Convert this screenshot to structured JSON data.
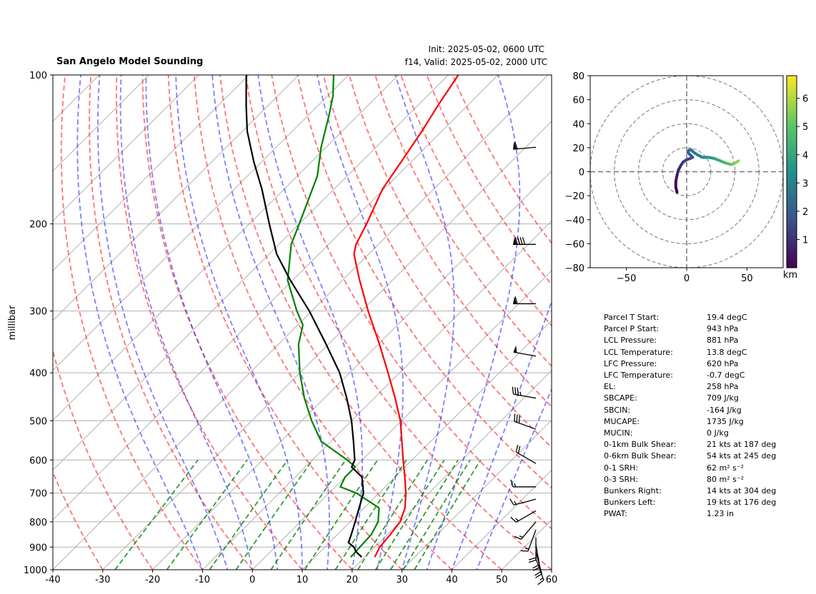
{
  "title_left": "San Angelo Model Sounding",
  "title_init": "Init: 2025-05-02, 0600 UTC",
  "title_valid": "f14, Valid: 2025-05-02, 2000 UTC",
  "chart_data": [
    {
      "type": "line",
      "name": "skew-t",
      "ylabel": "millibar",
      "xlabel": "",
      "xlim": [
        -40,
        60
      ],
      "ylim": [
        1000,
        100
      ],
      "y_scale": "log",
      "x_ticks": [
        -40,
        -30,
        -20,
        -10,
        0,
        10,
        20,
        30,
        40,
        50,
        60
      ],
      "y_ticks": [
        1000,
        900,
        800,
        700,
        600,
        500,
        400,
        300,
        200,
        100
      ],
      "grid": true,
      "series": [
        {
          "color": "#ff0000",
          "points": [
            {
              "p": 943,
              "t": 22.0
            },
            {
              "p": 900,
              "t": 21.0
            },
            {
              "p": 850,
              "t": 20.6
            },
            {
              "p": 800,
              "t": 20.0
            },
            {
              "p": 750,
              "t": 18.2
            },
            {
              "p": 700,
              "t": 15.4
            },
            {
              "p": 650,
              "t": 12.0
            },
            {
              "p": 600,
              "t": 8.2
            },
            {
              "p": 550,
              "t": 4.2
            },
            {
              "p": 500,
              "t": -0.2
            },
            {
              "p": 450,
              "t": -5.8
            },
            {
              "p": 400,
              "t": -12.3
            },
            {
              "p": 350,
              "t": -19.8
            },
            {
              "p": 300,
              "t": -28.7
            },
            {
              "p": 258,
              "t": -37.0
            },
            {
              "p": 230,
              "t": -43.0
            },
            {
              "p": 220,
              "t": -44.5
            },
            {
              "p": 200,
              "t": -46.5
            },
            {
              "p": 170,
              "t": -50.3
            },
            {
              "p": 150,
              "t": -52.0
            },
            {
              "p": 130,
              "t": -54.0
            },
            {
              "p": 115,
              "t": -56.0
            },
            {
              "p": 100,
              "t": -58.0
            }
          ]
        },
        {
          "color": "#008000",
          "points": [
            {
              "p": 943,
              "t": 17.2
            },
            {
              "p": 900,
              "t": 17.0
            },
            {
              "p": 850,
              "t": 16.8
            },
            {
              "p": 800,
              "t": 15.6
            },
            {
              "p": 750,
              "t": 13.0
            },
            {
              "p": 700,
              "t": 5.5
            },
            {
              "p": 680,
              "t": 1.0
            },
            {
              "p": 650,
              "t": 0.0
            },
            {
              "p": 620,
              "t": 0.0
            },
            {
              "p": 600,
              "t": -3.0
            },
            {
              "p": 550,
              "t": -12.0
            },
            {
              "p": 500,
              "t": -18.0
            },
            {
              "p": 450,
              "t": -24.0
            },
            {
              "p": 400,
              "t": -30.0
            },
            {
              "p": 350,
              "t": -36.0
            },
            {
              "p": 320,
              "t": -39.0
            },
            {
              "p": 300,
              "t": -43.0
            },
            {
              "p": 260,
              "t": -51.0
            },
            {
              "p": 220,
              "t": -57.5
            },
            {
              "p": 200,
              "t": -60.0
            },
            {
              "p": 160,
              "t": -66.0
            },
            {
              "p": 140,
              "t": -71.0
            },
            {
              "p": 120,
              "t": -76.0
            },
            {
              "p": 110,
              "t": -79.0
            },
            {
              "p": 100,
              "t": -83.0
            }
          ]
        },
        {
          "color": "#000000",
          "points": [
            {
              "p": 943,
              "t": 19.4
            },
            {
              "p": 920,
              "t": 17.2
            },
            {
              "p": 900,
              "t": 15.8
            },
            {
              "p": 881,
              "t": 13.8
            },
            {
              "p": 850,
              "t": 12.8
            },
            {
              "p": 800,
              "t": 11.0
            },
            {
              "p": 750,
              "t": 9.0
            },
            {
              "p": 700,
              "t": 6.9
            },
            {
              "p": 650,
              "t": 3.4
            },
            {
              "p": 620,
              "t": -0.7
            },
            {
              "p": 600,
              "t": -1.5
            },
            {
              "p": 550,
              "t": -5.5
            },
            {
              "p": 500,
              "t": -10.0
            },
            {
              "p": 450,
              "t": -15.5
            },
            {
              "p": 400,
              "t": -22.0
            },
            {
              "p": 350,
              "t": -30.5
            },
            {
              "p": 300,
              "t": -40.5
            },
            {
              "p": 258,
              "t": -51.0
            },
            {
              "p": 230,
              "t": -58.5
            },
            {
              "p": 200,
              "t": -66.0
            },
            {
              "p": 170,
              "t": -74.5
            },
            {
              "p": 150,
              "t": -81.5
            },
            {
              "p": 130,
              "t": -89.0
            },
            {
              "p": 115,
              "t": -94.5
            },
            {
              "p": 100,
              "t": -100.5
            }
          ]
        }
      ],
      "reference_lines": {
        "isotherm_color": "#aaaaaa",
        "dry_adiabat_color": "#ff0000",
        "moist_adiabat_color": "#0000ff",
        "mixing_ratio_color": "#008000",
        "dry_adiabat_theta_c": [
          -30,
          -20,
          -10,
          0,
          10,
          20,
          30,
          40,
          50,
          60,
          70,
          80,
          90,
          100,
          110,
          120,
          130,
          140
        ],
        "moist_adiabat_start_c": [
          -10,
          -5,
          0,
          5,
          10,
          15,
          20,
          25,
          30,
          35,
          40,
          45
        ],
        "mixing_ratio_g_kg": [
          0.4,
          1,
          2,
          3,
          5,
          8,
          12,
          16,
          20,
          24,
          28,
          32
        ]
      },
      "wind_barbs": [
        {
          "p": 950,
          "dir": 160,
          "spd": 15
        },
        {
          "p": 920,
          "dir": 165,
          "spd": 20
        },
        {
          "p": 890,
          "dir": 170,
          "spd": 20
        },
        {
          "p": 860,
          "dir": 180,
          "spd": 20
        },
        {
          "p": 830,
          "dir": 200,
          "spd": 15
        },
        {
          "p": 800,
          "dir": 220,
          "spd": 15
        },
        {
          "p": 760,
          "dir": 240,
          "spd": 15
        },
        {
          "p": 720,
          "dir": 255,
          "spd": 15
        },
        {
          "p": 680,
          "dir": 270,
          "spd": 15
        },
        {
          "p": 610,
          "dir": 300,
          "spd": 20
        },
        {
          "p": 520,
          "dir": 290,
          "spd": 30
        },
        {
          "p": 450,
          "dir": 280,
          "spd": 35
        },
        {
          "p": 370,
          "dir": 280,
          "spd": 50
        },
        {
          "p": 290,
          "dir": 270,
          "spd": 60
        },
        {
          "p": 220,
          "dir": 270,
          "spd": 90
        },
        {
          "p": 140,
          "dir": 265,
          "spd": 60
        }
      ]
    },
    {
      "type": "line",
      "name": "hodograph",
      "xlim": [
        -80,
        80
      ],
      "ylim": [
        -80,
        80
      ],
      "x_ticks": [
        -50,
        0,
        50
      ],
      "y_ticks": [
        -80,
        -60,
        -40,
        -20,
        0,
        20,
        40,
        60,
        80
      ],
      "ring_radii": [
        20,
        40,
        60,
        80
      ],
      "colorbar_label": "km",
      "colorbar_ticks": [
        1,
        2,
        3,
        4,
        5,
        6
      ],
      "colorbar_range": [
        0,
        6.8
      ],
      "points": [
        {
          "u": -8,
          "v": -17,
          "h": 0.0
        },
        {
          "u": -9,
          "v": -13,
          "h": 0.2
        },
        {
          "u": -9,
          "v": -8,
          "h": 0.4
        },
        {
          "u": -8,
          "v": -3,
          "h": 0.6
        },
        {
          "u": -7,
          "v": 1,
          "h": 0.8
        },
        {
          "u": -5,
          "v": 5,
          "h": 1.0
        },
        {
          "u": -3,
          "v": 8,
          "h": 1.2
        },
        {
          "u": 0,
          "v": 10,
          "h": 1.4
        },
        {
          "u": 3,
          "v": 11,
          "h": 1.6
        },
        {
          "u": 5,
          "v": 12,
          "h": 1.8
        },
        {
          "u": 3,
          "v": 14,
          "h": 2.0
        },
        {
          "u": 1,
          "v": 16,
          "h": 2.2
        },
        {
          "u": 2,
          "v": 18,
          "h": 2.4
        },
        {
          "u": 4,
          "v": 18,
          "h": 2.6
        },
        {
          "u": 6,
          "v": 16,
          "h": 2.8
        },
        {
          "u": 9,
          "v": 14,
          "h": 3.0
        },
        {
          "u": 13,
          "v": 12,
          "h": 3.3
        },
        {
          "u": 18,
          "v": 12,
          "h": 3.6
        },
        {
          "u": 23,
          "v": 11,
          "h": 4.0
        },
        {
          "u": 28,
          "v": 9,
          "h": 4.4
        },
        {
          "u": 33,
          "v": 7,
          "h": 4.8
        },
        {
          "u": 37,
          "v": 6,
          "h": 5.2
        },
        {
          "u": 40,
          "v": 7,
          "h": 5.6
        },
        {
          "u": 43,
          "v": 9,
          "h": 6.0
        }
      ]
    }
  ],
  "parameters": [
    {
      "label": "Parcel T Start:",
      "value": "19.4 degC"
    },
    {
      "label": "Parcel P Start:",
      "value": "943 hPa"
    },
    {
      "label": "LCL Pressure:",
      "value": "881 hPa"
    },
    {
      "label": "LCL Temperature:",
      "value": "13.8 degC"
    },
    {
      "label": "LFC Pressure:",
      "value": "620 hPa"
    },
    {
      "label": "LFC Temperature:",
      "value": "-0.7 degC"
    },
    {
      "label": "EL:",
      "value": "258 hPa"
    },
    {
      "label": "SBCAPE:",
      "value": "709 J/kg"
    },
    {
      "label": "SBCIN:",
      "value": "-164 J/kg"
    },
    {
      "label": "MUCAPE:",
      "value": "1735 J/kg"
    },
    {
      "label": "MUCIN:",
      "value": "0 J/kg"
    },
    {
      "label": "0-1km Bulk Shear:",
      "value": "21 kts at 187 deg"
    },
    {
      "label": "0-6km Bulk Shear:",
      "value": "54 kts at 245 deg"
    },
    {
      "label": "0-1 SRH:",
      "value": "62 m² s⁻²"
    },
    {
      "label": "0-3 SRH:",
      "value": "80 m² s⁻²"
    },
    {
      "label": "Bunkers Right:",
      "value": "14 kts at 304 deg"
    },
    {
      "label": "Bunkers Left:",
      "value": "19 kts at 176 deg"
    },
    {
      "label": "PWAT:",
      "value": "1.23 in"
    }
  ]
}
